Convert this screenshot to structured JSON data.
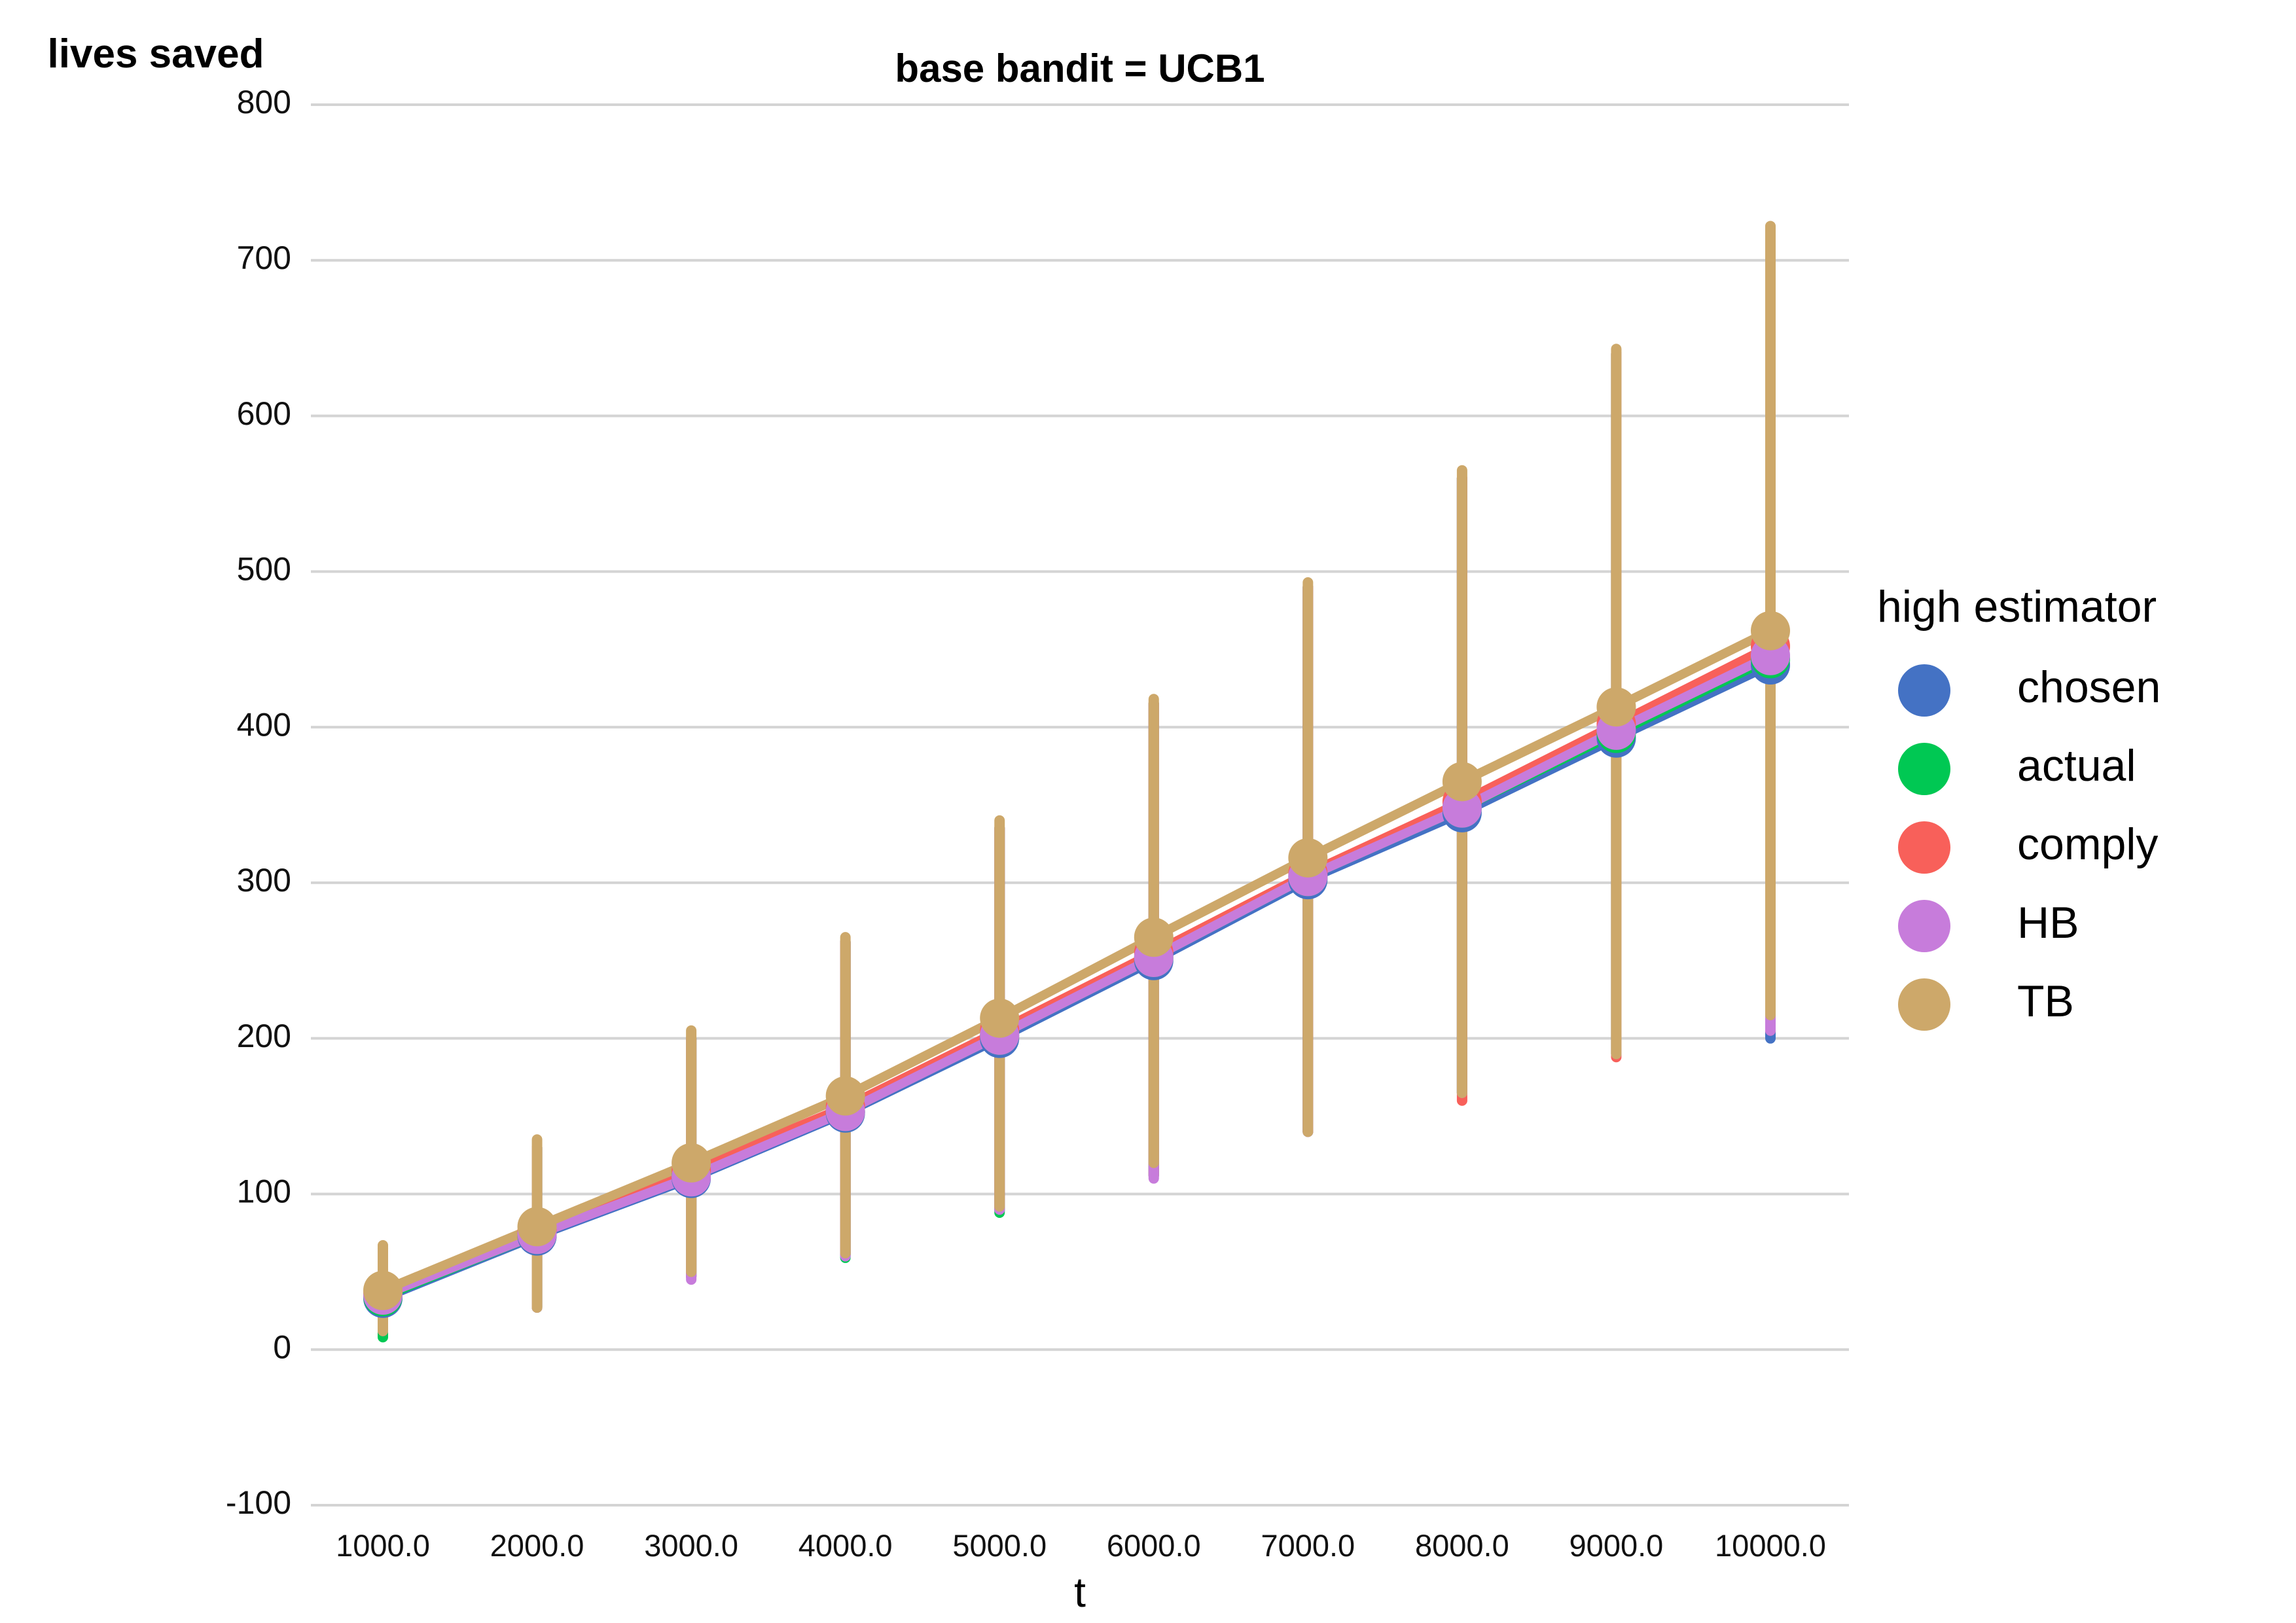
{
  "chart_data": {
    "type": "line",
    "title": "base bandit = UCB1",
    "xlabel": "t",
    "ylabel": "lives saved",
    "ylim": [
      -100,
      800
    ],
    "y_ticks": [
      "-100",
      "0",
      "100",
      "200",
      "300",
      "400",
      "500",
      "600",
      "700",
      "800"
    ],
    "x_tick_labels": [
      "1000.0",
      "2000.0",
      "3000.0",
      "4000.0",
      "5000.0",
      "6000.0",
      "7000.0",
      "8000.0",
      "9000.0",
      "10000.0"
    ],
    "x": [
      1000,
      2000,
      3000,
      4000,
      5000,
      6000,
      7000,
      8000,
      9000,
      10000
    ],
    "grid": "horizontal",
    "legend": {
      "title": "high estimator",
      "placement": "right"
    },
    "series": [
      {
        "name": "chosen",
        "color": "#4472C4",
        "values": [
          33,
          73,
          110,
          152,
          200,
          250,
          302,
          345,
          393,
          440
        ],
        "low": [
          12,
          27,
          47,
          61,
          90,
          112,
          140,
          165,
          190,
          200
        ],
        "high": [
          65,
          130,
          200,
          262,
          335,
          415,
          490,
          560,
          640,
          720
        ]
      },
      {
        "name": "actual",
        "color": "#00C853",
        "values": [
          34,
          74,
          112,
          153,
          202,
          252,
          304,
          348,
          396,
          444
        ],
        "low": [
          8,
          27,
          47,
          59,
          88,
          112,
          140,
          165,
          190,
          210
        ],
        "high": [
          65,
          130,
          200,
          262,
          335,
          415,
          490,
          560,
          640,
          720
        ]
      },
      {
        "name": "comply",
        "color": "#F8605A",
        "values": [
          36,
          76,
          115,
          156,
          205,
          255,
          306,
          352,
          402,
          452
        ],
        "low": [
          12,
          27,
          47,
          61,
          90,
          112,
          140,
          160,
          188,
          205
        ],
        "high": [
          65,
          130,
          200,
          262,
          335,
          415,
          490,
          560,
          640,
          720
        ]
      },
      {
        "name": "HB",
        "color": "#C77CDB",
        "values": [
          35,
          74,
          111,
          153,
          202,
          252,
          304,
          348,
          398,
          446
        ],
        "low": [
          12,
          27,
          45,
          60,
          90,
          110,
          140,
          165,
          190,
          205
        ],
        "high": [
          65,
          130,
          200,
          262,
          335,
          415,
          490,
          560,
          640,
          720
        ]
      },
      {
        "name": "TB",
        "color": "#CDA86A",
        "values": [
          38,
          79,
          120,
          163,
          213,
          265,
          316,
          365,
          413,
          462
        ],
        "low": [
          12,
          27,
          50,
          62,
          92,
          120,
          140,
          165,
          190,
          215
        ],
        "high": [
          67,
          135,
          205,
          265,
          340,
          418,
          493,
          565,
          643,
          722
        ]
      }
    ]
  }
}
